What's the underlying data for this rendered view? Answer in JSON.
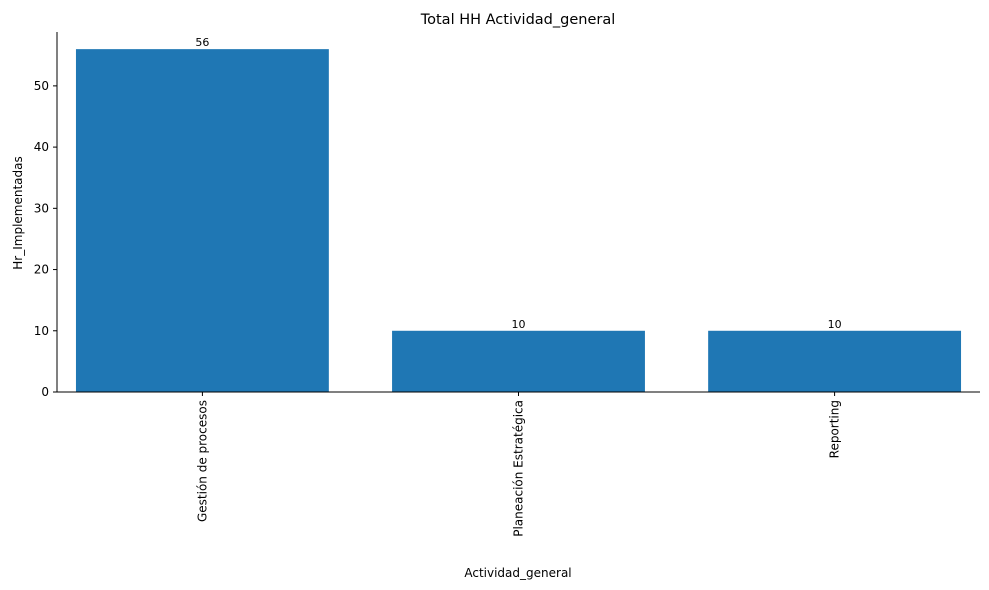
{
  "chart_data": {
    "type": "bar",
    "title": "Total HH Actividad_general",
    "xlabel": "Actividad_general",
    "ylabel": "Hr_Implementadas",
    "categories": [
      "Gestión de procesos",
      "Planeación Estratégica",
      "Reporting"
    ],
    "values": [
      56,
      10,
      10
    ],
    "data_labels": [
      "56",
      "10",
      "10"
    ],
    "ylim": [
      0,
      58.8
    ],
    "yticks": [
      0,
      10,
      20,
      30,
      40,
      50
    ],
    "ytick_labels": [
      "0",
      "10",
      "20",
      "30",
      "40",
      "50"
    ],
    "bar_color": "#1f77b4",
    "grid": false,
    "legend": "none"
  }
}
